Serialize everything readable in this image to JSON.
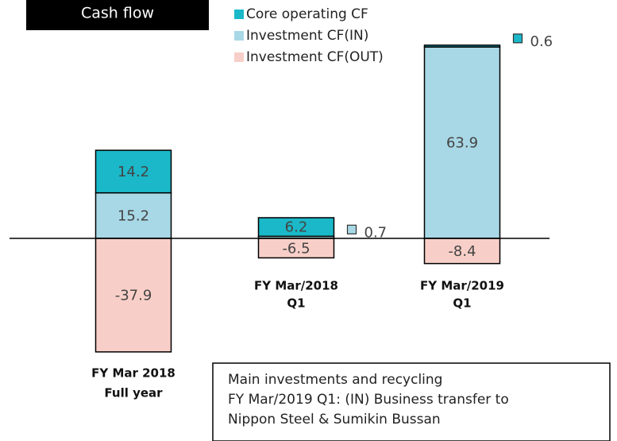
{
  "title": "Cash flow",
  "note": [
    "Main investments and recycling",
    "FY Mar/2019 Q1: (IN) Business transfer to",
    "Nippon Steel & Sumikin Bussan"
  ],
  "chart_data": {
    "type": "bar",
    "stacked": true,
    "categories": [
      [
        "FY Mar 2018",
        "Full year"
      ],
      [
        "FY Mar/2018",
        "Q1"
      ],
      [
        "FY Mar/2019",
        "Q1"
      ]
    ],
    "series": [
      {
        "name": "Core operating CF",
        "color": "#1ab8c8",
        "values": [
          14.2,
          6.2,
          0.6
        ]
      },
      {
        "name": "Investment CF(IN)",
        "color": "#a8d8e6",
        "values": [
          15.2,
          0.7,
          63.9
        ]
      },
      {
        "name": "Investment CF(OUT)",
        "color": "#f8cfc8",
        "values": [
          -37.9,
          -6.5,
          -8.4
        ]
      }
    ]
  }
}
